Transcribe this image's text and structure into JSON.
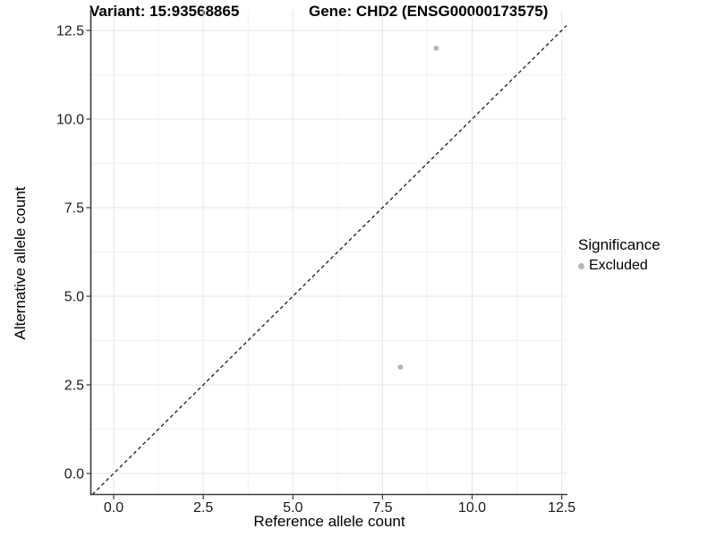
{
  "header": {
    "variant_title": "Variant: 15:93568865",
    "gene_title": "Gene: CHD2 (ENSG00000173575)"
  },
  "chart_data": {
    "type": "scatter",
    "title_left": "Variant: 15:93568865",
    "title_right": "Gene: CHD2 (ENSG00000173575)",
    "xlabel": "Reference allele count",
    "ylabel": "Alternative allele count",
    "x_tick_labels": [
      "0.0",
      "2.5",
      "5.0",
      "7.5",
      "10.0",
      "12.5"
    ],
    "y_tick_labels": [
      "0.0",
      "2.5",
      "5.0",
      "7.5",
      "10.0",
      "12.5"
    ],
    "x_minor_ticks": [
      1.25,
      3.75,
      6.25,
      8.75,
      11.25
    ],
    "y_minor_ticks": [
      1.25,
      3.75,
      6.25,
      8.75,
      11.25
    ],
    "xlim": [
      -0.63,
      12.63
    ],
    "ylim": [
      -0.59,
      13.08
    ],
    "grid": "major-and-minor, light gray on white",
    "identity_line": {
      "equation": "y = x",
      "style": "dashed",
      "color": "#1a1a1a"
    },
    "series": [
      {
        "name": "Excluded",
        "color": "#b5b5b5",
        "points": [
          {
            "x": 9,
            "y": 12
          },
          {
            "x": 8,
            "y": 3
          }
        ]
      }
    ],
    "legend": {
      "title": "Significance",
      "position": "right",
      "items": [
        {
          "label": "Excluded",
          "color": "#b5b5b5"
        }
      ]
    }
  },
  "style_colors": {
    "major_grid": "#e5e5e5",
    "minor_grid": "#f1f1f1",
    "axis_line": "#3c3c3c",
    "tick_mark": "#333333",
    "tick_text": "#1a1a1a",
    "point_fill": "#b5b5b5"
  }
}
